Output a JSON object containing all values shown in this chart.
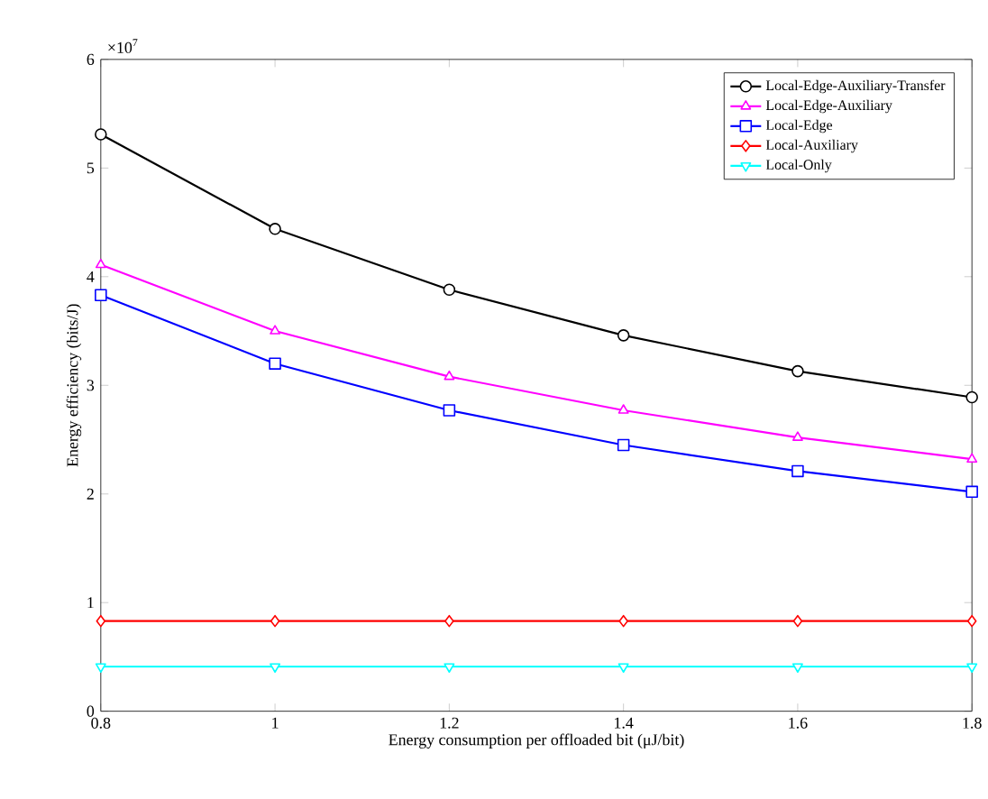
{
  "chart_data": {
    "type": "line",
    "xlabel": "Energy consumption per offloaded bit (μJ/bit)",
    "ylabel": "Energy efficiency (bits/J)",
    "x": [
      0.8,
      1.0,
      1.2,
      1.4,
      1.6,
      1.8
    ],
    "series": [
      {
        "name": "Local-Edge-Auxiliary-Transfer",
        "color": "#000000",
        "marker": "circle",
        "values": [
          5.31,
          4.44,
          3.88,
          3.46,
          3.13,
          2.89
        ]
      },
      {
        "name": "Local-Edge-Auxiliary",
        "color": "#ff00ff",
        "marker": "triangle",
        "values": [
          4.11,
          3.5,
          3.08,
          2.77,
          2.52,
          2.32
        ]
      },
      {
        "name": "Local-Edge",
        "color": "#0000ff",
        "marker": "square",
        "values": [
          3.83,
          3.2,
          2.77,
          2.45,
          2.21,
          2.02
        ]
      },
      {
        "name": "Local-Auxiliary",
        "color": "#ff0000",
        "marker": "diamond",
        "values": [
          0.83,
          0.83,
          0.83,
          0.83,
          0.83,
          0.83
        ]
      },
      {
        "name": "Local-Only",
        "color": "#00ffff",
        "marker": "triangle-down",
        "values": [
          0.41,
          0.41,
          0.41,
          0.41,
          0.41,
          0.41
        ]
      }
    ],
    "xlim": [
      0.8,
      1.8
    ],
    "xticks": [
      0.8,
      1,
      1.2,
      1.4,
      1.6,
      1.8
    ],
    "ylim": [
      0,
      6
    ],
    "yticks": [
      0,
      1,
      2,
      3,
      4,
      5,
      6
    ],
    "annotations": [
      "×10$^{7}$"
    ],
    "legend": "top right",
    "grid": false,
    "line_style": "solid"
  }
}
